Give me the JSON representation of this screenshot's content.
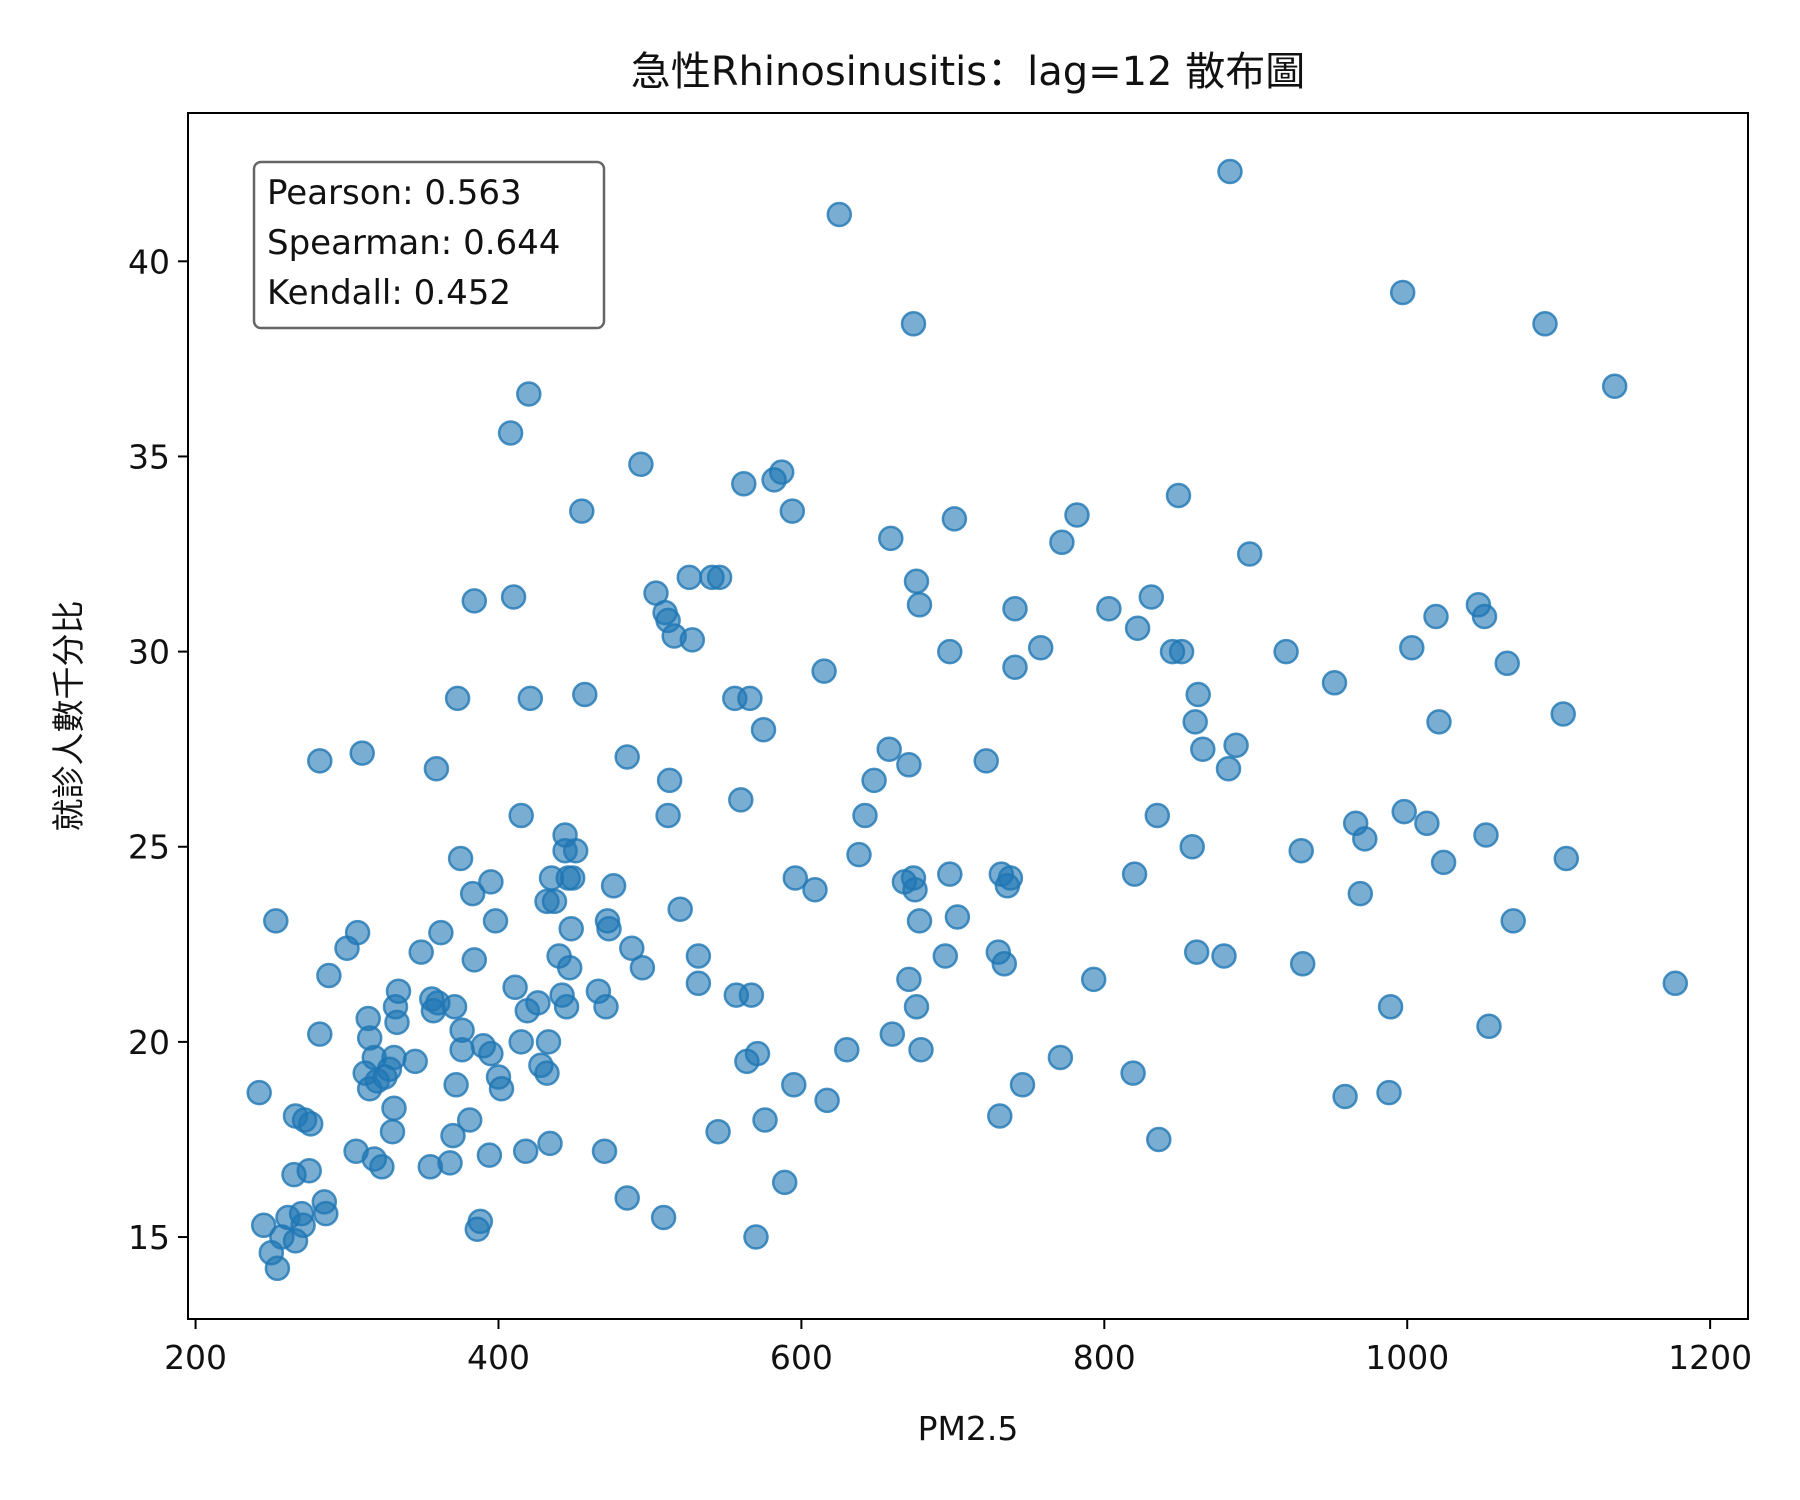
{
  "chart_data": {
    "type": "scatter",
    "title": "急性Rhinosinusitis：lag=12 散布圖",
    "xlabel": "PM2.5",
    "ylabel": "就診人數千分比",
    "xlim": [
      195,
      1225
    ],
    "ylim": [
      12.9,
      43.8
    ],
    "xticks": [
      200,
      400,
      600,
      800,
      1000,
      1200
    ],
    "yticks": [
      15,
      20,
      25,
      30,
      35,
      40
    ],
    "grid": false,
    "color": "#1f77b4",
    "stats": {
      "pearson": "Pearson: 0.563",
      "spearman": "Spearman: 0.644",
      "kendall": "Kendall: 0.452"
    },
    "points": [
      [
        242,
        18.7
      ],
      [
        245,
        15.3
      ],
      [
        250,
        14.6
      ],
      [
        253,
        23.1
      ],
      [
        254,
        14.2
      ],
      [
        257,
        15.0
      ],
      [
        261,
        15.5
      ],
      [
        265,
        16.6
      ],
      [
        266,
        18.1
      ],
      [
        266,
        14.9
      ],
      [
        270,
        15.6
      ],
      [
        271,
        15.3
      ],
      [
        272,
        18.0
      ],
      [
        275,
        16.7
      ],
      [
        276,
        17.9
      ],
      [
        282,
        27.2
      ],
      [
        282,
        20.2
      ],
      [
        285,
        15.9
      ],
      [
        286,
        15.6
      ],
      [
        288,
        21.7
      ],
      [
        300,
        22.4
      ],
      [
        306,
        17.2
      ],
      [
        307,
        22.8
      ],
      [
        310,
        27.4
      ],
      [
        312,
        19.2
      ],
      [
        314,
        20.6
      ],
      [
        315,
        18.8
      ],
      [
        315,
        20.1
      ],
      [
        318,
        19.6
      ],
      [
        318,
        17.0
      ],
      [
        320,
        19.0
      ],
      [
        323,
        16.8
      ],
      [
        325,
        19.1
      ],
      [
        328,
        19.3
      ],
      [
        330,
        17.7
      ],
      [
        331,
        18.3
      ],
      [
        331,
        19.6
      ],
      [
        332,
        20.9
      ],
      [
        333,
        20.5
      ],
      [
        334,
        21.3
      ],
      [
        345,
        19.5
      ],
      [
        349,
        22.3
      ],
      [
        355,
        16.8
      ],
      [
        356,
        21.1
      ],
      [
        357,
        20.8
      ],
      [
        359,
        27.0
      ],
      [
        360,
        21.0
      ],
      [
        362,
        22.8
      ],
      [
        368,
        16.9
      ],
      [
        370,
        17.6
      ],
      [
        371,
        20.9
      ],
      [
        372,
        18.9
      ],
      [
        373,
        28.8
      ],
      [
        375,
        24.7
      ],
      [
        376,
        20.3
      ],
      [
        376,
        19.8
      ],
      [
        381,
        18.0
      ],
      [
        383,
        23.8
      ],
      [
        384,
        22.1
      ],
      [
        384,
        31.3
      ],
      [
        386,
        15.2
      ],
      [
        388,
        15.4
      ],
      [
        390,
        19.9
      ],
      [
        394,
        17.1
      ],
      [
        395,
        24.1
      ],
      [
        395,
        19.7
      ],
      [
        398,
        23.1
      ],
      [
        400,
        19.1
      ],
      [
        402,
        18.8
      ],
      [
        408,
        35.6
      ],
      [
        410,
        31.4
      ],
      [
        411,
        21.4
      ],
      [
        415,
        25.8
      ],
      [
        415,
        20.0
      ],
      [
        418,
        17.2
      ],
      [
        419,
        20.8
      ],
      [
        420,
        36.6
      ],
      [
        421,
        28.8
      ],
      [
        426,
        21.0
      ],
      [
        428,
        19.4
      ],
      [
        432,
        23.6
      ],
      [
        432,
        19.2
      ],
      [
        433,
        20.0
      ],
      [
        434,
        17.4
      ],
      [
        435,
        24.2
      ],
      [
        437,
        23.6
      ],
      [
        440,
        22.2
      ],
      [
        442,
        21.2
      ],
      [
        444,
        25.3
      ],
      [
        444,
        24.9
      ],
      [
        445,
        20.9
      ],
      [
        446,
        24.2
      ],
      [
        447,
        21.9
      ],
      [
        448,
        22.9
      ],
      [
        449,
        24.2
      ],
      [
        451,
        24.9
      ],
      [
        455,
        33.6
      ],
      [
        457,
        28.9
      ],
      [
        466,
        21.3
      ],
      [
        470,
        17.2
      ],
      [
        471,
        20.9
      ],
      [
        472,
        23.1
      ],
      [
        473,
        22.9
      ],
      [
        476,
        24.0
      ],
      [
        485,
        27.3
      ],
      [
        485,
        16.0
      ],
      [
        488,
        22.4
      ],
      [
        494,
        34.8
      ],
      [
        495,
        21.9
      ],
      [
        504,
        31.5
      ],
      [
        509,
        15.5
      ],
      [
        510,
        31.0
      ],
      [
        512,
        30.8
      ],
      [
        512,
        25.8
      ],
      [
        513,
        26.7
      ],
      [
        516,
        30.4
      ],
      [
        520,
        23.4
      ],
      [
        526,
        31.9
      ],
      [
        528,
        30.3
      ],
      [
        532,
        22.2
      ],
      [
        532,
        21.5
      ],
      [
        541,
        31.9
      ],
      [
        545,
        17.7
      ],
      [
        546,
        31.9
      ],
      [
        556,
        28.8
      ],
      [
        557,
        21.2
      ],
      [
        560,
        26.2
      ],
      [
        562,
        34.3
      ],
      [
        564,
        19.5
      ],
      [
        566,
        28.8
      ],
      [
        567,
        21.2
      ],
      [
        570,
        15.0
      ],
      [
        571,
        19.7
      ],
      [
        575,
        28.0
      ],
      [
        576,
        18.0
      ],
      [
        582,
        34.4
      ],
      [
        587,
        34.6
      ],
      [
        589,
        16.4
      ],
      [
        594,
        33.6
      ],
      [
        595,
        18.9
      ],
      [
        596,
        24.2
      ],
      [
        609,
        23.9
      ],
      [
        615,
        29.5
      ],
      [
        617,
        18.5
      ],
      [
        625,
        41.2
      ],
      [
        630,
        19.8
      ],
      [
        638,
        24.8
      ],
      [
        642,
        25.8
      ],
      [
        648,
        26.7
      ],
      [
        658,
        27.5
      ],
      [
        659,
        32.9
      ],
      [
        660,
        20.2
      ],
      [
        668,
        24.1
      ],
      [
        671,
        21.6
      ],
      [
        671,
        27.1
      ],
      [
        674,
        38.4
      ],
      [
        674,
        24.2
      ],
      [
        675,
        23.9
      ],
      [
        676,
        20.9
      ],
      [
        676,
        31.8
      ],
      [
        678,
        31.2
      ],
      [
        678,
        23.1
      ],
      [
        679,
        19.8
      ],
      [
        695,
        22.2
      ],
      [
        698,
        24.3
      ],
      [
        698,
        30.0
      ],
      [
        701,
        33.4
      ],
      [
        703,
        23.2
      ],
      [
        722,
        27.2
      ],
      [
        730,
        22.3
      ],
      [
        731,
        18.1
      ],
      [
        732,
        24.3
      ],
      [
        734,
        22.0
      ],
      [
        736,
        24.0
      ],
      [
        738,
        24.2
      ],
      [
        741,
        31.1
      ],
      [
        741,
        29.6
      ],
      [
        746,
        18.9
      ],
      [
        758,
        30.1
      ],
      [
        771,
        19.6
      ],
      [
        772,
        32.8
      ],
      [
        782,
        33.5
      ],
      [
        793,
        21.6
      ],
      [
        803,
        31.1
      ],
      [
        819,
        19.2
      ],
      [
        820,
        24.3
      ],
      [
        822,
        30.6
      ],
      [
        831,
        31.4
      ],
      [
        835,
        25.8
      ],
      [
        836,
        17.5
      ],
      [
        845,
        30.0
      ],
      [
        849,
        34.0
      ],
      [
        851,
        30.0
      ],
      [
        858,
        25.0
      ],
      [
        860,
        28.2
      ],
      [
        861,
        22.3
      ],
      [
        862,
        28.9
      ],
      [
        865,
        27.5
      ],
      [
        879,
        22.2
      ],
      [
        882,
        27.0
      ],
      [
        883,
        42.3
      ],
      [
        887,
        27.6
      ],
      [
        896,
        32.5
      ],
      [
        920,
        30.0
      ],
      [
        930,
        24.9
      ],
      [
        931,
        22.0
      ],
      [
        952,
        29.2
      ],
      [
        959,
        18.6
      ],
      [
        966,
        25.6
      ],
      [
        969,
        23.8
      ],
      [
        972,
        25.2
      ],
      [
        988,
        18.7
      ],
      [
        989,
        20.9
      ],
      [
        997,
        39.2
      ],
      [
        998,
        25.9
      ],
      [
        1003,
        30.1
      ],
      [
        1013,
        25.6
      ],
      [
        1019,
        30.9
      ],
      [
        1021,
        28.2
      ],
      [
        1024,
        24.6
      ],
      [
        1047,
        31.2
      ],
      [
        1051,
        30.9
      ],
      [
        1052,
        25.3
      ],
      [
        1054,
        20.4
      ],
      [
        1066,
        29.7
      ],
      [
        1070,
        23.1
      ],
      [
        1091,
        38.4
      ],
      [
        1103,
        28.4
      ],
      [
        1105,
        24.7
      ],
      [
        1137,
        36.8
      ],
      [
        1177,
        21.5
      ]
    ]
  }
}
